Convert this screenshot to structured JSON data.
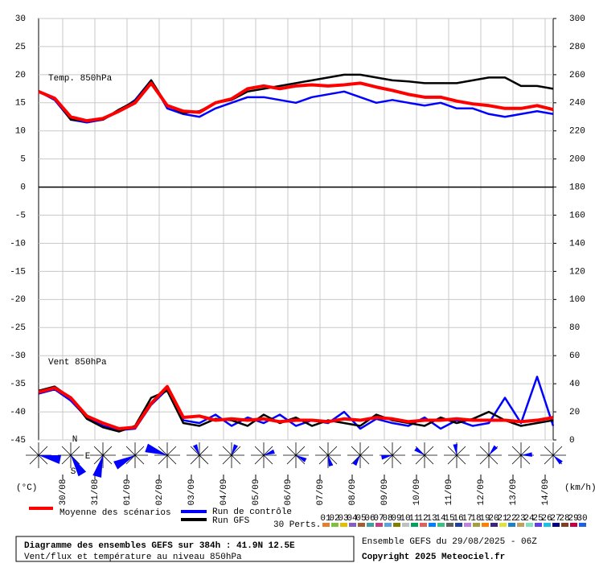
{
  "chart_data": {
    "type": "line",
    "panel_labels": [
      "Temp. 850hPa",
      "Vent 850hPa"
    ],
    "y_unit_label": "(°C)",
    "y2_unit_label": "(km/h)",
    "x": [
      0,
      12,
      24,
      36,
      48,
      60,
      72,
      84,
      96,
      108,
      120,
      132,
      144,
      156,
      168,
      180,
      192,
      204,
      216,
      228,
      240,
      252,
      264,
      276,
      288,
      300,
      312,
      324,
      336,
      348,
      360,
      372,
      384
    ],
    "xlim": [
      0,
      384
    ],
    "xticks": [
      {
        "value": 18,
        "label": "30/08"
      },
      {
        "value": 42,
        "label": "31/08"
      },
      {
        "value": 66,
        "label": "01/09"
      },
      {
        "value": 90,
        "label": "02/09"
      },
      {
        "value": 114,
        "label": "03/09"
      },
      {
        "value": 138,
        "label": "04/09"
      },
      {
        "value": 162,
        "label": "05/09"
      },
      {
        "value": 186,
        "label": "06/09"
      },
      {
        "value": 210,
        "label": "07/09"
      },
      {
        "value": 234,
        "label": "08/09"
      },
      {
        "value": 258,
        "label": "09/09"
      },
      {
        "value": 282,
        "label": "10/09"
      },
      {
        "value": 306,
        "label": "11/09"
      },
      {
        "value": 330,
        "label": "12/09"
      },
      {
        "value": 354,
        "label": "13/09"
      },
      {
        "value": 378,
        "label": "14/09"
      }
    ],
    "ylim": [
      -45,
      30
    ],
    "yticks": [
      30,
      25,
      20,
      15,
      10,
      5,
      0,
      -5,
      -10,
      -15,
      -20,
      -25,
      -30,
      -35,
      -40,
      -45
    ],
    "y2lim": [
      0,
      300
    ],
    "y2ticks": [
      300,
      280,
      260,
      240,
      220,
      200,
      180,
      160,
      140,
      120,
      100,
      80,
      60,
      40,
      20,
      0
    ],
    "grid": true,
    "series": [
      {
        "name": "Run de contrôle",
        "color": "#0000ff",
        "values": [
          17,
          15.5,
          12,
          11.5,
          12,
          13.5,
          15.5,
          19,
          14,
          13,
          12.5,
          14,
          15,
          16,
          16,
          15.5,
          15,
          16,
          16.5,
          17,
          16,
          15,
          15.5,
          15,
          14.5,
          15,
          14,
          14,
          13,
          12.5,
          13,
          13.5,
          13
        ]
      },
      {
        "name": "Run GFS",
        "color": "#000000",
        "values": [
          17,
          15.8,
          12,
          11.8,
          12,
          13.8,
          15.3,
          19,
          14.5,
          13.2,
          13.5,
          15,
          15.5,
          17,
          17.5,
          18,
          18.5,
          19,
          19.5,
          20,
          20,
          19.5,
          19,
          18.8,
          18.5,
          18.5,
          18.5,
          19,
          19.5,
          19.5,
          18,
          18,
          17.5
        ]
      },
      {
        "name": "Moyenne des scénarios",
        "color": "#ff0000",
        "values": [
          17,
          15.8,
          12.5,
          11.8,
          12.2,
          13.5,
          15,
          18.5,
          14.5,
          13.5,
          13.3,
          15,
          15.7,
          17.5,
          18,
          17.5,
          18,
          18.2,
          18,
          18.2,
          18.5,
          17.8,
          17.2,
          16.5,
          16,
          16,
          15.3,
          14.8,
          14.5,
          14,
          14,
          14.5,
          13.8
        ]
      },
      {
        "name": "Run de contrôle",
        "color": "#0000ff",
        "axis": "y2",
        "values": [
          33,
          36,
          28,
          16,
          10,
          7,
          8,
          25,
          36,
          14,
          12,
          18,
          10,
          16,
          12,
          18,
          10,
          14,
          12,
          20,
          8,
          15,
          12,
          10,
          16,
          8,
          14,
          10,
          12,
          30,
          12,
          45,
          10
        ]
      },
      {
        "name": "Run GFS",
        "color": "#000000",
        "axis": "y2",
        "values": [
          35,
          38,
          30,
          15,
          9,
          6,
          10,
          30,
          35,
          12,
          10,
          15,
          14,
          10,
          18,
          12,
          16,
          10,
          14,
          12,
          10,
          18,
          14,
          12,
          10,
          16,
          12,
          15,
          20,
          14,
          10,
          12,
          14
        ]
      },
      {
        "name": "Moyenne des scénarios",
        "color": "#ff0000",
        "axis": "y2",
        "values": [
          34,
          37,
          30,
          17,
          12,
          8,
          9,
          26,
          38,
          16,
          17,
          14,
          15,
          14,
          15,
          13,
          14,
          14,
          13,
          15,
          14,
          16,
          15,
          13,
          14,
          14,
          15,
          14,
          14,
          14,
          13,
          14,
          16
        ]
      }
    ],
    "compass": [
      "N",
      "E",
      "S"
    ],
    "perturbations": {
      "label": "30 Perts.",
      "items": [
        {
          "label": "01",
          "color": "#e08030"
        },
        {
          "label": "02",
          "color": "#80c040"
        },
        {
          "label": "03",
          "color": "#e0c000"
        },
        {
          "label": "04",
          "color": "#8060c0"
        },
        {
          "label": "05",
          "color": "#a06030"
        },
        {
          "label": "06",
          "color": "#40a0a0"
        },
        {
          "label": "07",
          "color": "#c04080"
        },
        {
          "label": "08",
          "color": "#60a0e0"
        },
        {
          "label": "09",
          "color": "#808000"
        },
        {
          "label": "10",
          "color": "#c0c0c0"
        },
        {
          "label": "11",
          "color": "#00a060"
        },
        {
          "label": "12",
          "color": "#e06060"
        },
        {
          "label": "13",
          "color": "#0080ff"
        },
        {
          "label": "14",
          "color": "#40c080"
        },
        {
          "label": "15",
          "color": "#606060"
        },
        {
          "label": "16",
          "color": "#2040a0"
        },
        {
          "label": "17",
          "color": "#c080e0"
        },
        {
          "label": "18",
          "color": "#a0a040"
        },
        {
          "label": "19",
          "color": "#ff8000"
        },
        {
          "label": "20",
          "color": "#402080"
        },
        {
          "label": "21",
          "color": "#e0e040"
        },
        {
          "label": "22",
          "color": "#2080c0"
        },
        {
          "label": "23",
          "color": "#c0a060"
        },
        {
          "label": "24",
          "color": "#80e0c0"
        },
        {
          "label": "25",
          "color": "#6040e0"
        },
        {
          "label": "26",
          "color": "#20c0e0"
        },
        {
          "label": "27",
          "color": "#000080"
        },
        {
          "label": "28",
          "color": "#804020"
        },
        {
          "label": "29",
          "color": "#c00040"
        },
        {
          "label": "30",
          "color": "#2060e0"
        }
      ]
    },
    "footer": {
      "title": "Diagramme des ensembles GEFS sur 384h : 41.9N 12.5E",
      "subtitle": "Vent/flux et température au niveau 850hPa",
      "run": "Ensemble GEFS du 29/08/2025 - 06Z",
      "copyright": "Copyright 2025 Meteociel.fr"
    }
  }
}
